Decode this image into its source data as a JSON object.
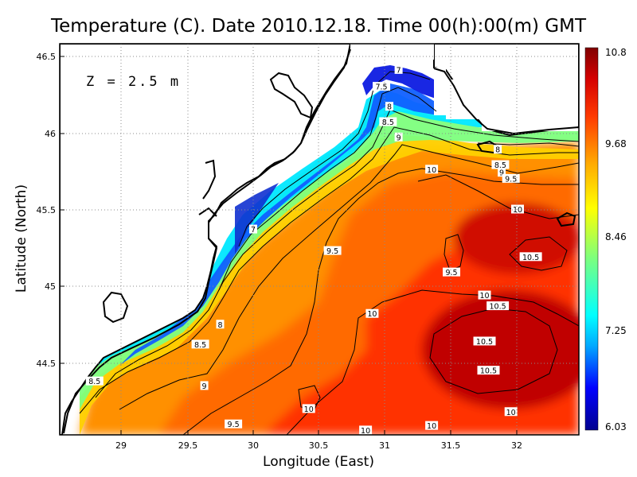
{
  "title": "Temperature (C). Date 2010.12.18. Time 00(h):00(m) GMT",
  "depth_label": "Z = 2.5 m",
  "colorbar": {
    "min": 6.03,
    "max": 10.8,
    "tick_labels": [
      "10.8",
      "9.68",
      "8.46",
      "7.25",
      "6.03"
    ],
    "stops": [
      "#00008f",
      "#0000ff",
      "#00a8ff",
      "#00ffff",
      "#7dff7d",
      "#ffff00",
      "#ffa800",
      "#ff3a00",
      "#d40000",
      "#800000"
    ]
  },
  "chart_data": {
    "type": "heatmap",
    "title": "Temperature (C). Date 2010.12.18. Time 00(h):00(m) GMT",
    "xlabel": "Longitude (East)",
    "ylabel": "Latitude (North)",
    "xlim": [
      28.55,
      32.45
    ],
    "ylim": [
      44.05,
      46.55
    ],
    "x_ticks": [
      "29",
      "29.5",
      "30",
      "30.5",
      "31",
      "31.5",
      "32"
    ],
    "y_ticks": [
      "44.5",
      "45",
      "45.5",
      "46",
      "46.5"
    ],
    "grid": true,
    "color_range": [
      6.03,
      10.8
    ],
    "annotation": "Z = 2.5 m",
    "contour_labels": [
      {
        "text": "7",
        "x": 31.1,
        "y": 46.41
      },
      {
        "text": "7.5",
        "x": 30.97,
        "y": 46.3
      },
      {
        "text": "8",
        "x": 31.03,
        "y": 46.17
      },
      {
        "text": "8.5",
        "x": 31.02,
        "y": 46.07
      },
      {
        "text": "9",
        "x": 31.1,
        "y": 45.97
      },
      {
        "text": "8",
        "x": 31.85,
        "y": 45.89
      },
      {
        "text": "8.5",
        "x": 31.87,
        "y": 45.79
      },
      {
        "text": "9",
        "x": 31.88,
        "y": 45.74
      },
      {
        "text": "9.5",
        "x": 31.95,
        "y": 45.7
      },
      {
        "text": "10",
        "x": 31.35,
        "y": 45.76
      },
      {
        "text": "10",
        "x": 32.0,
        "y": 45.5
      },
      {
        "text": "7",
        "x": 30.0,
        "y": 45.37
      },
      {
        "text": "9.5",
        "x": 30.6,
        "y": 45.23
      },
      {
        "text": "10.5",
        "x": 32.1,
        "y": 45.19
      },
      {
        "text": "9.5",
        "x": 31.5,
        "y": 45.09
      },
      {
        "text": "10",
        "x": 31.75,
        "y": 44.94
      },
      {
        "text": "10.5",
        "x": 31.85,
        "y": 44.87
      },
      {
        "text": "10",
        "x": 30.9,
        "y": 44.82
      },
      {
        "text": "8",
        "x": 29.75,
        "y": 44.75
      },
      {
        "text": "8.5",
        "x": 29.6,
        "y": 44.62
      },
      {
        "text": "10.5",
        "x": 31.75,
        "y": 44.64
      },
      {
        "text": "10.5",
        "x": 31.78,
        "y": 44.45
      },
      {
        "text": "8.5",
        "x": 28.8,
        "y": 44.38
      },
      {
        "text": "9",
        "x": 29.63,
        "y": 44.35
      },
      {
        "text": "10",
        "x": 30.42,
        "y": 44.2
      },
      {
        "text": "10",
        "x": 31.95,
        "y": 44.18
      },
      {
        "text": "9.5",
        "x": 29.85,
        "y": 44.1
      },
      {
        "text": "10",
        "x": 30.85,
        "y": 44.06
      },
      {
        "text": "10",
        "x": 31.35,
        "y": 44.09
      }
    ]
  }
}
